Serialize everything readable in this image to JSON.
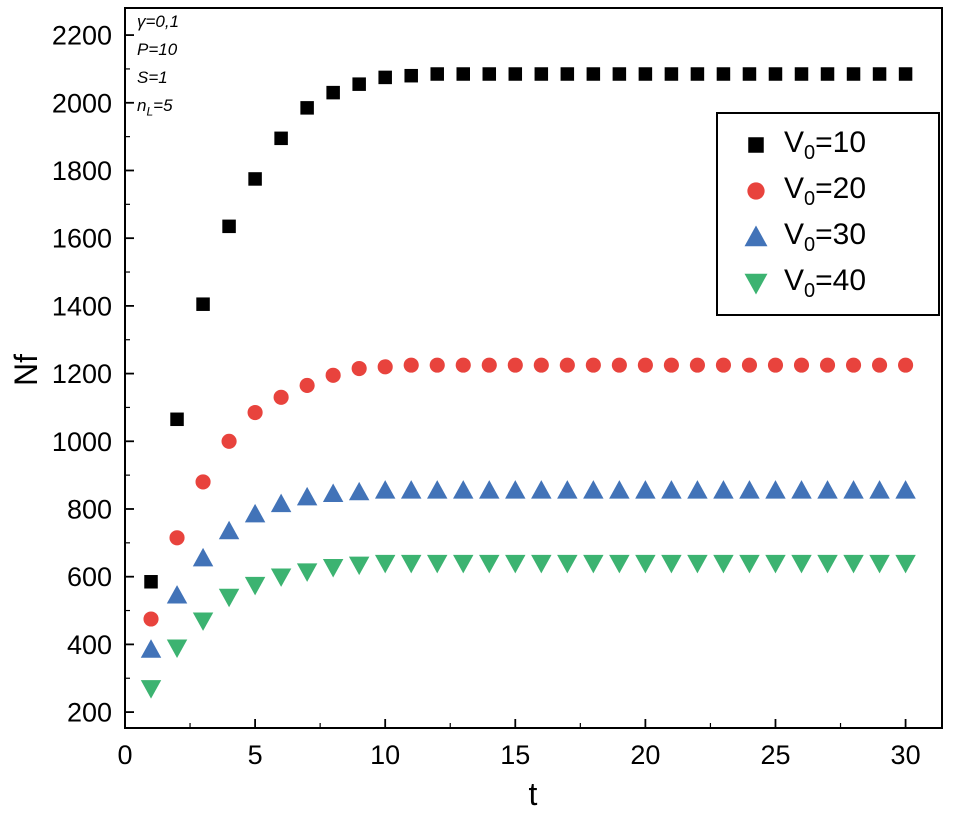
{
  "figure": {
    "background": "#ffffff",
    "frame_color": "#000000"
  },
  "chart_data": {
    "type": "scatter",
    "title": "",
    "xlabel": "t",
    "ylabel": "Nf",
    "xlim": [
      0,
      31.4
    ],
    "ylim": [
      153,
      2280
    ],
    "xticks": [
      0,
      5,
      10,
      15,
      20,
      25,
      30
    ],
    "yticks": [
      200,
      400,
      600,
      800,
      1000,
      1200,
      1400,
      1600,
      1800,
      2000,
      2200
    ],
    "x_minor_step": 2.5,
    "y_minor_step": 100,
    "grid": false,
    "legend_position": "top-right",
    "annotations": [
      {
        "base": "γ=0,1",
        "sub": "",
        "rest": ""
      },
      {
        "base": "P=10",
        "sub": "",
        "rest": ""
      },
      {
        "base": "S=1",
        "sub": "",
        "rest": ""
      },
      {
        "base": "n",
        "sub": "L",
        "rest": "=5"
      }
    ],
    "x": [
      1,
      2,
      3,
      4,
      5,
      6,
      7,
      8,
      9,
      10,
      11,
      12,
      13,
      14,
      15,
      16,
      17,
      18,
      19,
      20,
      21,
      22,
      23,
      24,
      25,
      26,
      27,
      28,
      29,
      30
    ],
    "series": [
      {
        "label_base": "V",
        "label_sub": "0",
        "label_rest": "=10",
        "marker": "square",
        "color": "#000000",
        "values": [
          585,
          1065,
          1405,
          1635,
          1775,
          1895,
          1985,
          2030,
          2055,
          2075,
          2080,
          2085,
          2085,
          2085,
          2085,
          2085,
          2085,
          2085,
          2085,
          2085,
          2085,
          2085,
          2085,
          2085,
          2085,
          2085,
          2085,
          2085,
          2085,
          2085
        ]
      },
      {
        "label_base": "V",
        "label_sub": "0",
        "label_rest": "=20",
        "marker": "circle",
        "color": "#e8433d",
        "values": [
          475,
          715,
          880,
          1000,
          1085,
          1130,
          1165,
          1195,
          1215,
          1220,
          1225,
          1225,
          1225,
          1225,
          1225,
          1225,
          1225,
          1225,
          1225,
          1225,
          1225,
          1225,
          1225,
          1225,
          1225,
          1225,
          1225,
          1225,
          1225,
          1225
        ]
      },
      {
        "label_base": "V",
        "label_sub": "0",
        "label_rest": "=30",
        "marker": "triangle-up",
        "color": "#4273b8",
        "values": [
          385,
          545,
          655,
          735,
          785,
          815,
          835,
          845,
          850,
          855,
          855,
          855,
          855,
          855,
          855,
          855,
          855,
          855,
          855,
          855,
          855,
          855,
          855,
          855,
          855,
          855,
          855,
          855,
          855,
          855
        ]
      },
      {
        "label_base": "V",
        "label_sub": "0",
        "label_rest": "=40",
        "marker": "triangle-down",
        "color": "#3cb371",
        "values": [
          270,
          390,
          470,
          540,
          575,
          600,
          615,
          628,
          635,
          640,
          640,
          640,
          640,
          640,
          640,
          640,
          640,
          640,
          640,
          640,
          640,
          640,
          640,
          640,
          640,
          640,
          640,
          640,
          640,
          640
        ]
      }
    ]
  }
}
